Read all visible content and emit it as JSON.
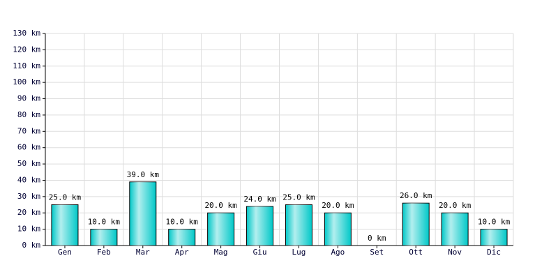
{
  "chart_data": {
    "type": "bar",
    "categories": [
      "Gen",
      "Feb",
      "Mar",
      "Apr",
      "Mag",
      "Giu",
      "Lug",
      "Ago",
      "Set",
      "Ott",
      "Nov",
      "Dic"
    ],
    "values": [
      25,
      10,
      39,
      10,
      20,
      24,
      25,
      20,
      0,
      26,
      20,
      10
    ],
    "value_labels": [
      "25.0 km",
      "10.0 km",
      "39.0 km",
      "10.0 km",
      "20.0 km",
      "24.0 km",
      "25.0 km",
      "20.0 km",
      "0 km",
      "26.0 km",
      "20.0 km",
      "10.0 km"
    ],
    "color": "#00c8c8",
    "ylim": [
      0,
      130
    ],
    "yticks": [
      {
        "value": 0,
        "label": "0 km"
      },
      {
        "value": 10,
        "label": "10 km"
      },
      {
        "value": 20,
        "label": "20 km"
      },
      {
        "value": 30,
        "label": "30 km"
      },
      {
        "value": 40,
        "label": "40 km"
      },
      {
        "value": 50,
        "label": "50 km"
      },
      {
        "value": 60,
        "label": "60 km"
      },
      {
        "value": 70,
        "label": "70 km"
      },
      {
        "value": 80,
        "label": "80 km"
      },
      {
        "value": 90,
        "label": "90 km"
      },
      {
        "value": 100,
        "label": "100 km"
      },
      {
        "value": 110,
        "label": "110 km"
      },
      {
        "value": 120,
        "label": "120 km"
      },
      {
        "value": 130,
        "label": "130 km"
      }
    ],
    "grid": true
  }
}
